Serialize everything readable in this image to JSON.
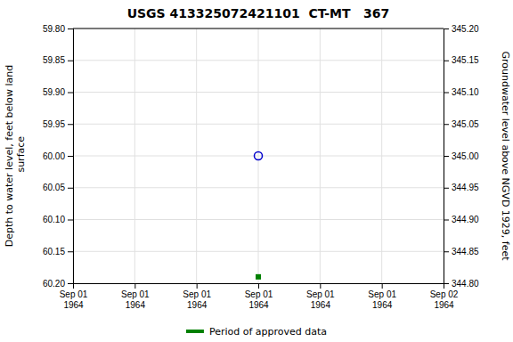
{
  "chart_data": {
    "type": "scatter",
    "title": "USGS 413325072421101  CT-MT   367",
    "y_label": "Depth to water level, feet below land\n surface",
    "y2_label": "Groundwater level above NGVD 1929, feet",
    "categories": [
      "Sep 01\n1964",
      "Sep 01\n1964",
      "Sep 01\n1964",
      "Sep 01\n1964",
      "Sep 01\n1964",
      "Sep 01\n1964",
      "Sep 02\n1964"
    ],
    "series": [
      {
        "color": "#0000cc",
        "marker": "circle-open",
        "values": [
          null,
          null,
          null,
          60,
          null,
          null,
          null
        ]
      },
      {
        "name": "Period of approved data",
        "color": "#008000",
        "marker": "square",
        "values": [
          null,
          null,
          null,
          60.19,
          null,
          null,
          null
        ]
      }
    ],
    "ylim": [
      60.2,
      59.8
    ],
    "yticks": [
      {
        "value": 59.8,
        "label": "59.80"
      },
      {
        "value": 59.85,
        "label": "59.85"
      },
      {
        "value": 59.9,
        "label": "59.90"
      },
      {
        "value": 59.95,
        "label": "59.95"
      },
      {
        "value": 60,
        "label": "60.00"
      },
      {
        "value": 60.05,
        "label": "60.05"
      },
      {
        "value": 60.1,
        "label": "60.10"
      },
      {
        "value": 60.15,
        "label": "60.15"
      },
      {
        "value": 60.2,
        "label": "60.20"
      }
    ],
    "y2lim": [
      344.8,
      345.2
    ],
    "y2ticks": [
      {
        "value": 344.8,
        "label": "344.80"
      },
      {
        "value": 344.85,
        "label": "344.85"
      },
      {
        "value": 344.9,
        "label": "344.90"
      },
      {
        "value": 344.95,
        "label": "344.95"
      },
      {
        "value": 345,
        "label": "345.00"
      },
      {
        "value": 345.05,
        "label": "345.05"
      },
      {
        "value": 345.1,
        "label": "345.10"
      },
      {
        "value": 345.15,
        "label": "345.15"
      },
      {
        "value": 345.2,
        "label": "345.20"
      }
    ],
    "grid": true,
    "legend": "bottom"
  }
}
